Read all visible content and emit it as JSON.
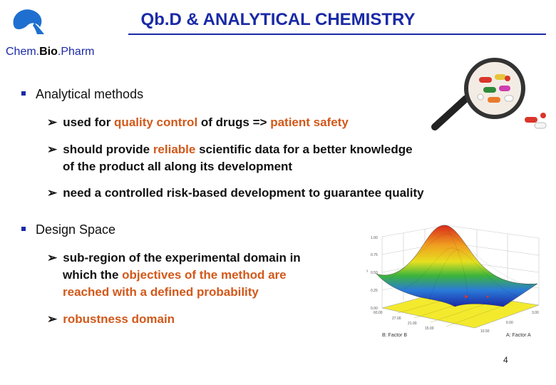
{
  "header": {
    "title": "Qb.D & ANALYTICAL CHEMISTRY",
    "brand_chem": "Chem.",
    "brand_bio": "Bio",
    "brand_pharm": ".Pharm"
  },
  "sections": [
    {
      "label": "Analytical methods",
      "items": [
        {
          "parts": [
            "used for ",
            "quality control",
            " of drugs => ",
            "patient safety"
          ]
        },
        {
          "parts": [
            "should provide ",
            "reliable",
            " scientific data for a better knowledge"
          ],
          "cont": "of the product all along its development"
        },
        {
          "parts": [
            "need a controlled risk-based development to guarantee quality"
          ]
        }
      ]
    },
    {
      "label": "Design Space",
      "items": [
        {
          "line1": "sub-region of the experimental domain in",
          "line2a": "which the ",
          "line2b": "objectives of the method are",
          "line3": "reached with a defined probability"
        },
        {
          "text": "robustness domain"
        }
      ]
    }
  ],
  "figure": {
    "axis_b": "B: Factor B",
    "axis_a": "A: Factor A",
    "z_ticks": [
      "1.00",
      "0.75",
      "0.50",
      "0.25",
      "0.00"
    ],
    "x_ticks": [
      "60.00",
      "27.00",
      "21.00",
      "15.00",
      "10.50",
      "6.00",
      "3.00"
    ]
  },
  "colors": {
    "title": "#1a2aa6",
    "highlight": "#d2581a"
  },
  "icons": [
    "magnifier-icon",
    "logo-icon",
    "bullet-square-icon",
    "arrow-bullet-icon"
  ],
  "page_number": "4"
}
